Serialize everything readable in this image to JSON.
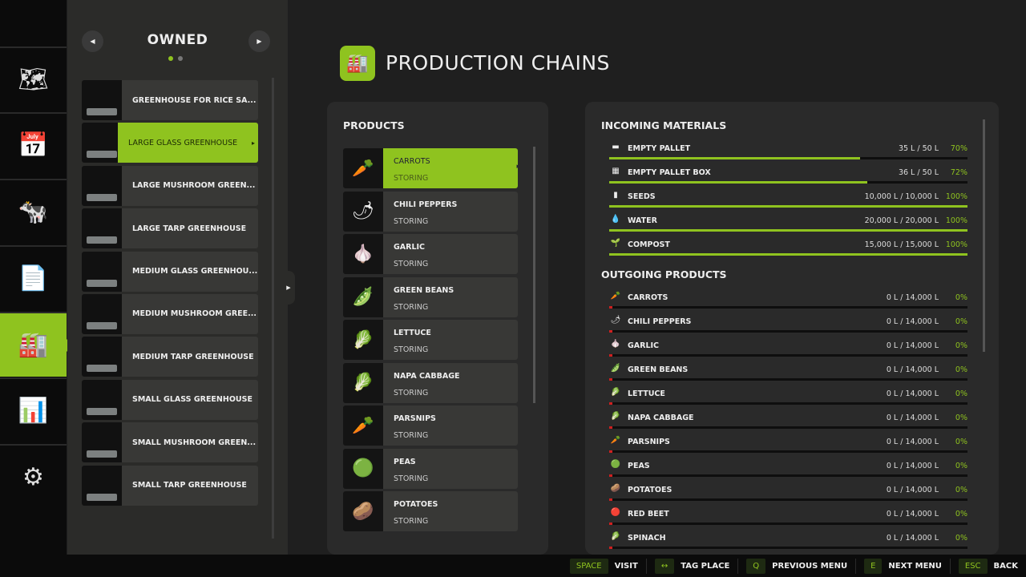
{
  "nav": {
    "items": [
      {
        "icon": "map-icon",
        "glyph": "🗺"
      },
      {
        "icon": "calendar-icon",
        "glyph": "📅"
      },
      {
        "icon": "animals-icon",
        "glyph": "🐄"
      },
      {
        "icon": "contracts-icon",
        "glyph": "📄"
      },
      {
        "icon": "production-icon",
        "glyph": "🏭",
        "active": true
      },
      {
        "icon": "statistics-icon",
        "glyph": "📊"
      },
      {
        "icon": "settings-icon",
        "glyph": "⚙"
      }
    ]
  },
  "side": {
    "title": "OWNED",
    "page_index": 1,
    "page_count": 2,
    "productions": [
      "GREENHOUSE FOR RICE SA...",
      "LARGE GLASS GREENHOUSE",
      "LARGE MUSHROOM GREEN...",
      "LARGE TARP GREENHOUSE",
      "MEDIUM GLASS GREENHOU...",
      "MEDIUM MUSHROOM GREE...",
      "MEDIUM TARP GREENHOUSE",
      "SMALL GLASS GREENHOUSE",
      "SMALL MUSHROOM GREEN...",
      "SMALL TARP GREENHOUSE"
    ],
    "selected": 1
  },
  "header": {
    "title": "PRODUCTION CHAINS",
    "icon": "production-icon"
  },
  "products": {
    "title": "PRODUCTS",
    "items": [
      {
        "name": "CARROTS",
        "status": "STORING",
        "glyph": "🥕"
      },
      {
        "name": "CHILI PEPPERS",
        "status": "STORING",
        "glyph": "🌶"
      },
      {
        "name": "GARLIC",
        "status": "STORING",
        "glyph": "🧄"
      },
      {
        "name": "GREEN BEANS",
        "status": "STORING",
        "glyph": "🫛"
      },
      {
        "name": "LETTUCE",
        "status": "STORING",
        "glyph": "🥬"
      },
      {
        "name": "NAPA CABBAGE",
        "status": "STORING",
        "glyph": "🥬"
      },
      {
        "name": "PARSNIPS",
        "status": "STORING",
        "glyph": "🥕"
      },
      {
        "name": "PEAS",
        "status": "STORING",
        "glyph": "🟢"
      },
      {
        "name": "POTATOES",
        "status": "STORING",
        "glyph": "🥔"
      }
    ]
  },
  "incoming": {
    "title": "INCOMING MATERIALS",
    "items": [
      {
        "name": "EMPTY PALLET",
        "amount": "35 L / 50 L",
        "percent": "70%",
        "fill": 70,
        "glyph": "▬"
      },
      {
        "name": "EMPTY PALLET BOX",
        "amount": "36 L / 50 L",
        "percent": "72%",
        "fill": 72,
        "glyph": "▦"
      },
      {
        "name": "SEEDS",
        "amount": "10,000 L / 10,000 L",
        "percent": "100%",
        "fill": 100,
        "glyph": "▮"
      },
      {
        "name": "WATER",
        "amount": "20,000 L / 20,000 L",
        "percent": "100%",
        "fill": 100,
        "glyph": "💧"
      },
      {
        "name": "COMPOST",
        "amount": "15,000 L / 15,000 L",
        "percent": "100%",
        "fill": 100,
        "glyph": "🌱"
      }
    ]
  },
  "outgoing": {
    "title": "OUTGOING PRODUCTS",
    "items": [
      {
        "name": "CARROTS",
        "amount": "0 L / 14,000 L",
        "percent": "0%",
        "fill": 0,
        "glyph": "🥕"
      },
      {
        "name": "CHILI PEPPERS",
        "amount": "0 L / 14,000 L",
        "percent": "0%",
        "fill": 0,
        "glyph": "🌶"
      },
      {
        "name": "GARLIC",
        "amount": "0 L / 14,000 L",
        "percent": "0%",
        "fill": 0,
        "glyph": "🧄"
      },
      {
        "name": "GREEN BEANS",
        "amount": "0 L / 14,000 L",
        "percent": "0%",
        "fill": 0,
        "glyph": "🫛"
      },
      {
        "name": "LETTUCE",
        "amount": "0 L / 14,000 L",
        "percent": "0%",
        "fill": 0,
        "glyph": "🥬"
      },
      {
        "name": "NAPA CABBAGE",
        "amount": "0 L / 14,000 L",
        "percent": "0%",
        "fill": 0,
        "glyph": "🥬"
      },
      {
        "name": "PARSNIPS",
        "amount": "0 L / 14,000 L",
        "percent": "0%",
        "fill": 0,
        "glyph": "🥕"
      },
      {
        "name": "PEAS",
        "amount": "0 L / 14,000 L",
        "percent": "0%",
        "fill": 0,
        "glyph": "🟢"
      },
      {
        "name": "POTATOES",
        "amount": "0 L / 14,000 L",
        "percent": "0%",
        "fill": 0,
        "glyph": "🥔"
      },
      {
        "name": "RED BEET",
        "amount": "0 L / 14,000 L",
        "percent": "0%",
        "fill": 0,
        "glyph": "🔴"
      },
      {
        "name": "SPINACH",
        "amount": "0 L / 14,000 L",
        "percent": "0%",
        "fill": 0,
        "glyph": "🥬"
      }
    ]
  },
  "footer": [
    {
      "key": "SPACE",
      "label": "VISIT"
    },
    {
      "key": "↔",
      "label": "TAG PLACE"
    },
    {
      "key": "Q",
      "label": "PREVIOUS MENU"
    },
    {
      "key": "E",
      "label": "NEXT MENU"
    },
    {
      "key": "ESC",
      "label": "BACK"
    }
  ],
  "colors": {
    "accent": "#8fc31f",
    "empty_bar": "#d02020"
  }
}
